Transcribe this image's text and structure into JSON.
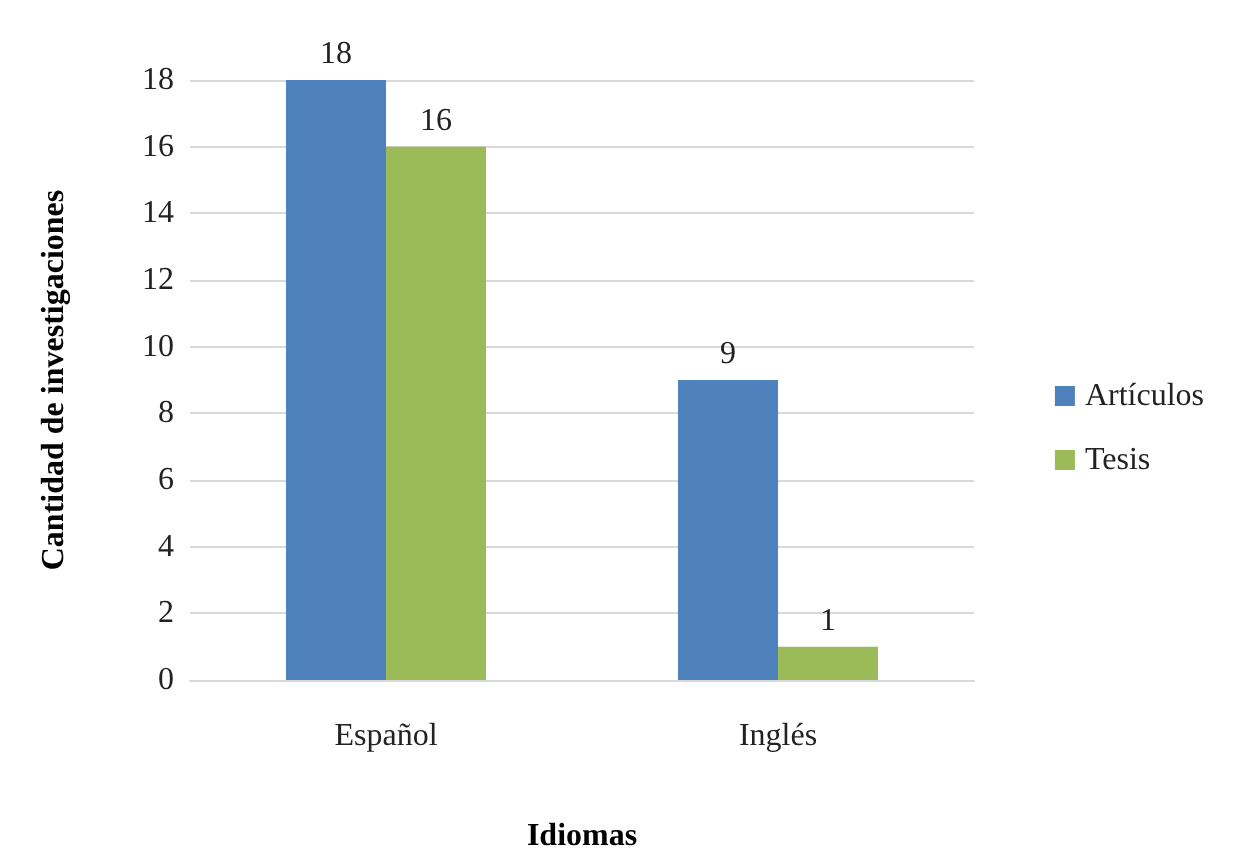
{
  "chart_data": {
    "type": "bar",
    "xlabel": "Idiomas",
    "ylabel": "Cantidad de investigaciones",
    "categories": [
      "Español",
      "Inglés"
    ],
    "series": [
      {
        "name": "Artículos",
        "color": "#4f81bd",
        "values": [
          18,
          9
        ]
      },
      {
        "name": "Tesis",
        "color": "#9bbb59",
        "values": [
          16,
          1
        ]
      }
    ],
    "ylim": [
      0,
      18
    ],
    "yticks": [
      0,
      2,
      4,
      6,
      8,
      10,
      12,
      14,
      16,
      18
    ],
    "grid": "y",
    "legend": "right",
    "data_labels": true
  }
}
